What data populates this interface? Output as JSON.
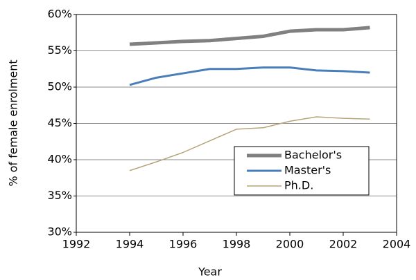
{
  "chart_data": {
    "type": "line",
    "xlabel": "Year",
    "ylabel": "% of female enrolment",
    "x": [
      1994,
      1995,
      1996,
      1997,
      1998,
      1999,
      2000,
      2001,
      2002,
      2003
    ],
    "series": [
      {
        "name": "Bachelor's",
        "color": "#808080",
        "values": [
          55.9,
          56.1,
          56.3,
          56.4,
          56.7,
          57.0,
          57.7,
          57.9,
          57.9,
          58.2
        ]
      },
      {
        "name": "Master's",
        "color": "#4a7ebb",
        "values": [
          50.3,
          51.3,
          51.9,
          52.5,
          52.5,
          52.7,
          52.7,
          52.3,
          52.2,
          52.0
        ]
      },
      {
        "name": "Ph.D.",
        "color": "#b5a577",
        "values": [
          38.5,
          39.7,
          41.0,
          42.6,
          44.2,
          44.4,
          45.3,
          45.9,
          45.7,
          45.6
        ]
      }
    ],
    "xlim": [
      1992,
      2004
    ],
    "xticks": [
      1992,
      1994,
      1996,
      1998,
      2000,
      2002,
      2004
    ],
    "ylim": [
      30,
      60
    ],
    "yticks": [
      {
        "value": 30,
        "label": "30%"
      },
      {
        "value": 35,
        "label": "35%"
      },
      {
        "value": 40,
        "label": "40%"
      },
      {
        "value": 45,
        "label": "45%"
      },
      {
        "value": 50,
        "label": "50%"
      },
      {
        "value": 55,
        "label": "55%"
      },
      {
        "value": 60,
        "label": "60%"
      }
    ],
    "grid": true,
    "legend": "lower right"
  }
}
